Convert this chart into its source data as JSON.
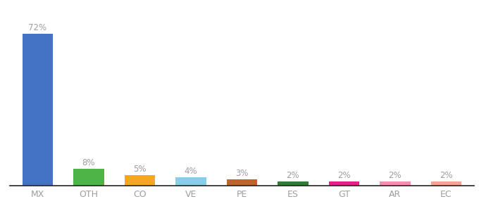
{
  "categories": [
    "MX",
    "OTH",
    "CO",
    "VE",
    "PE",
    "ES",
    "GT",
    "AR",
    "EC"
  ],
  "values": [
    72,
    8,
    5,
    4,
    3,
    2,
    2,
    2,
    2
  ],
  "bar_colors": [
    "#4472c4",
    "#4db548",
    "#f5a623",
    "#87ceeb",
    "#c0622a",
    "#2e7d32",
    "#e91e8c",
    "#f48fb1",
    "#f4a490"
  ],
  "ylim": [
    0,
    80
  ],
  "label_color": "#9e9e9e",
  "tick_color": "#9e9e9e",
  "background_color": "#ffffff",
  "label_fontsize": 8.5,
  "tick_fontsize": 9.0
}
